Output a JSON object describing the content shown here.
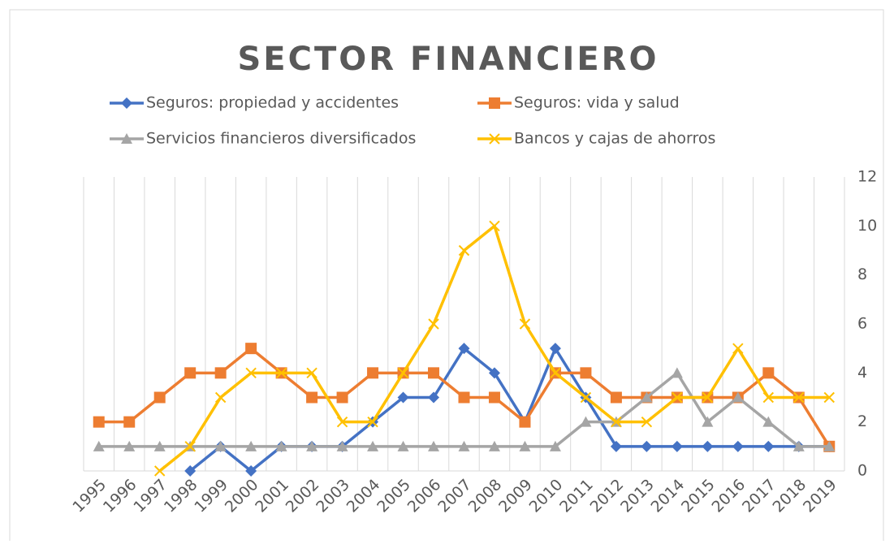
{
  "chart_data": {
    "type": "line",
    "title": "SECTOR FINANCIERO",
    "categories": [
      "1995",
      "1996",
      "1997",
      "1998",
      "1999",
      "2000",
      "2001",
      "2002",
      "2003",
      "2004",
      "2005",
      "2006",
      "2007",
      "2008",
      "2009",
      "2010",
      "2011",
      "2012",
      "2013",
      "2014",
      "2015",
      "2016",
      "2017",
      "2018",
      "2019"
    ],
    "series": [
      {
        "name": "Seguros: propiedad y accidentes",
        "color": "#4472c4",
        "marker": "diamond",
        "values": [
          null,
          null,
          null,
          0,
          1,
          0,
          1,
          1,
          1,
          2,
          3,
          3,
          5,
          4,
          2,
          5,
          3,
          1,
          1,
          1,
          1,
          1,
          1,
          1,
          1
        ]
      },
      {
        "name": "Seguros: vida y salud",
        "color": "#ed7d31",
        "marker": "square",
        "values": [
          2,
          2,
          3,
          4,
          4,
          5,
          4,
          3,
          3,
          4,
          4,
          4,
          3,
          3,
          2,
          4,
          4,
          3,
          3,
          3,
          3,
          3,
          4,
          3,
          1
        ]
      },
      {
        "name": "Servicios financieros diversificados",
        "color": "#a5a5a5",
        "marker": "triangle",
        "values": [
          1,
          1,
          1,
          1,
          1,
          1,
          1,
          1,
          1,
          1,
          1,
          1,
          1,
          1,
          1,
          1,
          2,
          2,
          3,
          4,
          2,
          3,
          2,
          1,
          1
        ]
      },
      {
        "name": "Bancos y cajas de ahorros",
        "color": "#ffc000",
        "marker": "x",
        "values": [
          null,
          null,
          0,
          1,
          3,
          4,
          4,
          4,
          2,
          2,
          4,
          6,
          9,
          10,
          6,
          4,
          3,
          2,
          2,
          3,
          3,
          5,
          3,
          3,
          3
        ]
      }
    ],
    "ylim": [
      0,
      12
    ],
    "yticks": [
      0,
      2,
      4,
      6,
      8,
      10,
      12
    ],
    "y_axis_side": "right",
    "grid": "vertical"
  }
}
